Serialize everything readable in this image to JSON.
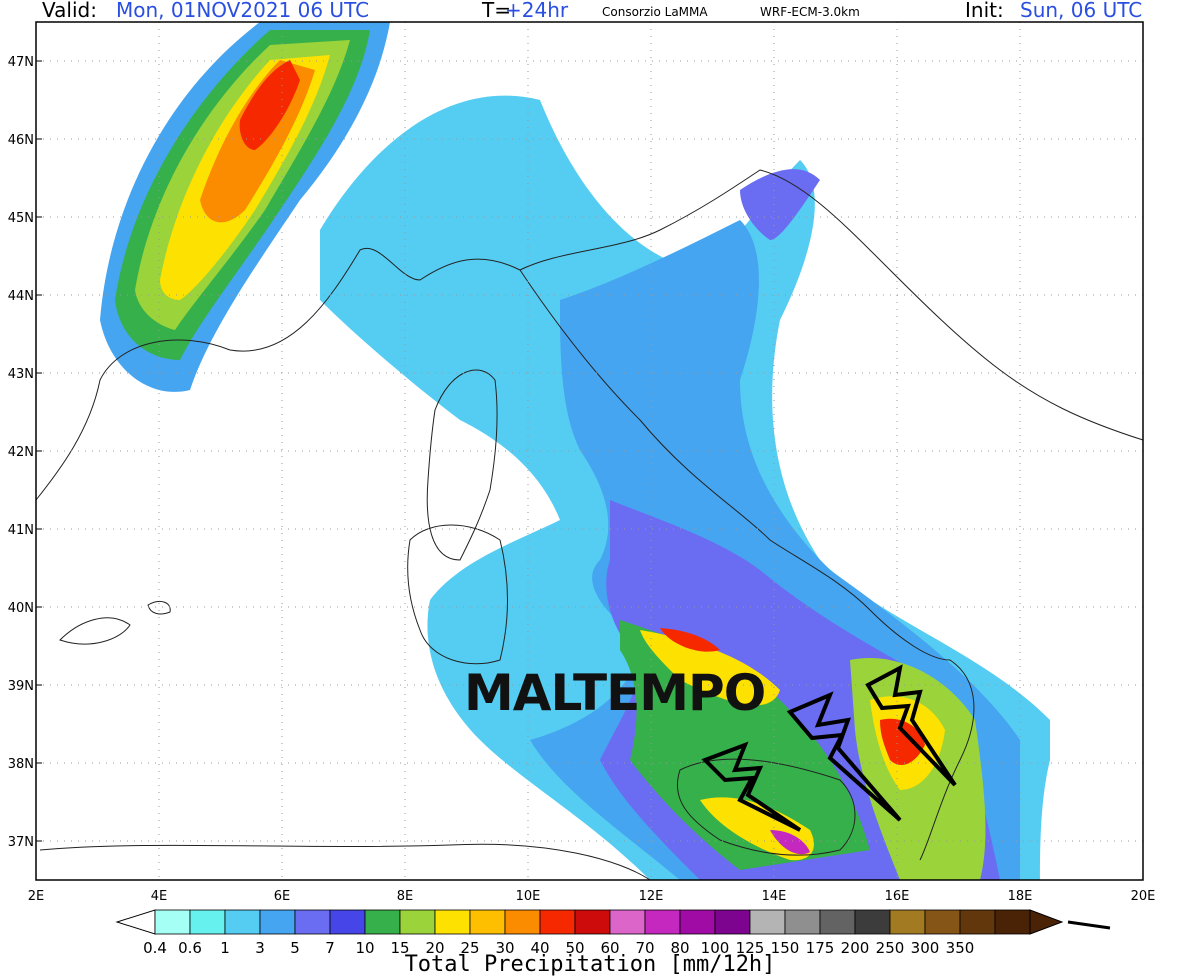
{
  "header": {
    "valid_label": "Valid:",
    "valid_value": "Mon, 01NOV2021   06 UTC",
    "t_label": "T=",
    "t_value": "+24hr",
    "consortium": "Consorzio LaMMA",
    "model": "WRF-ECM-3.0km",
    "init_label": "Init:",
    "init_value": "Sun, 06 UTC"
  },
  "map": {
    "lat_ticks": [
      "37N",
      "38N",
      "39N",
      "40N",
      "41N",
      "42N",
      "43N",
      "44N",
      "45N",
      "46N",
      "47N"
    ],
    "lon_ticks": [
      "2E",
      "4E",
      "6E",
      "8E",
      "10E",
      "12E",
      "14E",
      "16E",
      "18E",
      "20E"
    ],
    "lat_range": [
      36.5,
      47.5
    ],
    "lon_range": [
      2,
      20
    ],
    "overlay_text": "MALTEMPO",
    "storm_icon": "lightning-bolt-icon"
  },
  "colorbar": {
    "title": "Total Precipitation [mm/12h]",
    "labels": [
      "0.4",
      "0.6",
      "1",
      "3",
      "5",
      "7",
      "10",
      "15",
      "20",
      "25",
      "30",
      "40",
      "50",
      "60",
      "70",
      "80",
      "100",
      "125",
      "150",
      "175",
      "200",
      "250",
      "300",
      "350"
    ],
    "colors": [
      "#a6fff5",
      "#66f0ee",
      "#55cdf2",
      "#45a5f0",
      "#6a6df2",
      "#4646e8",
      "#36b04a",
      "#9bd43a",
      "#fde100",
      "#fdbf00",
      "#fb8c00",
      "#f52800",
      "#cd0b0b",
      "#dc65c9",
      "#c428bf",
      "#a00aa5",
      "#7c048f",
      "#b4b4b4",
      "#8f8f8f",
      "#636363",
      "#3c3c3c",
      "#a27a22",
      "#855417",
      "#61370b",
      "#4a2206"
    ]
  }
}
